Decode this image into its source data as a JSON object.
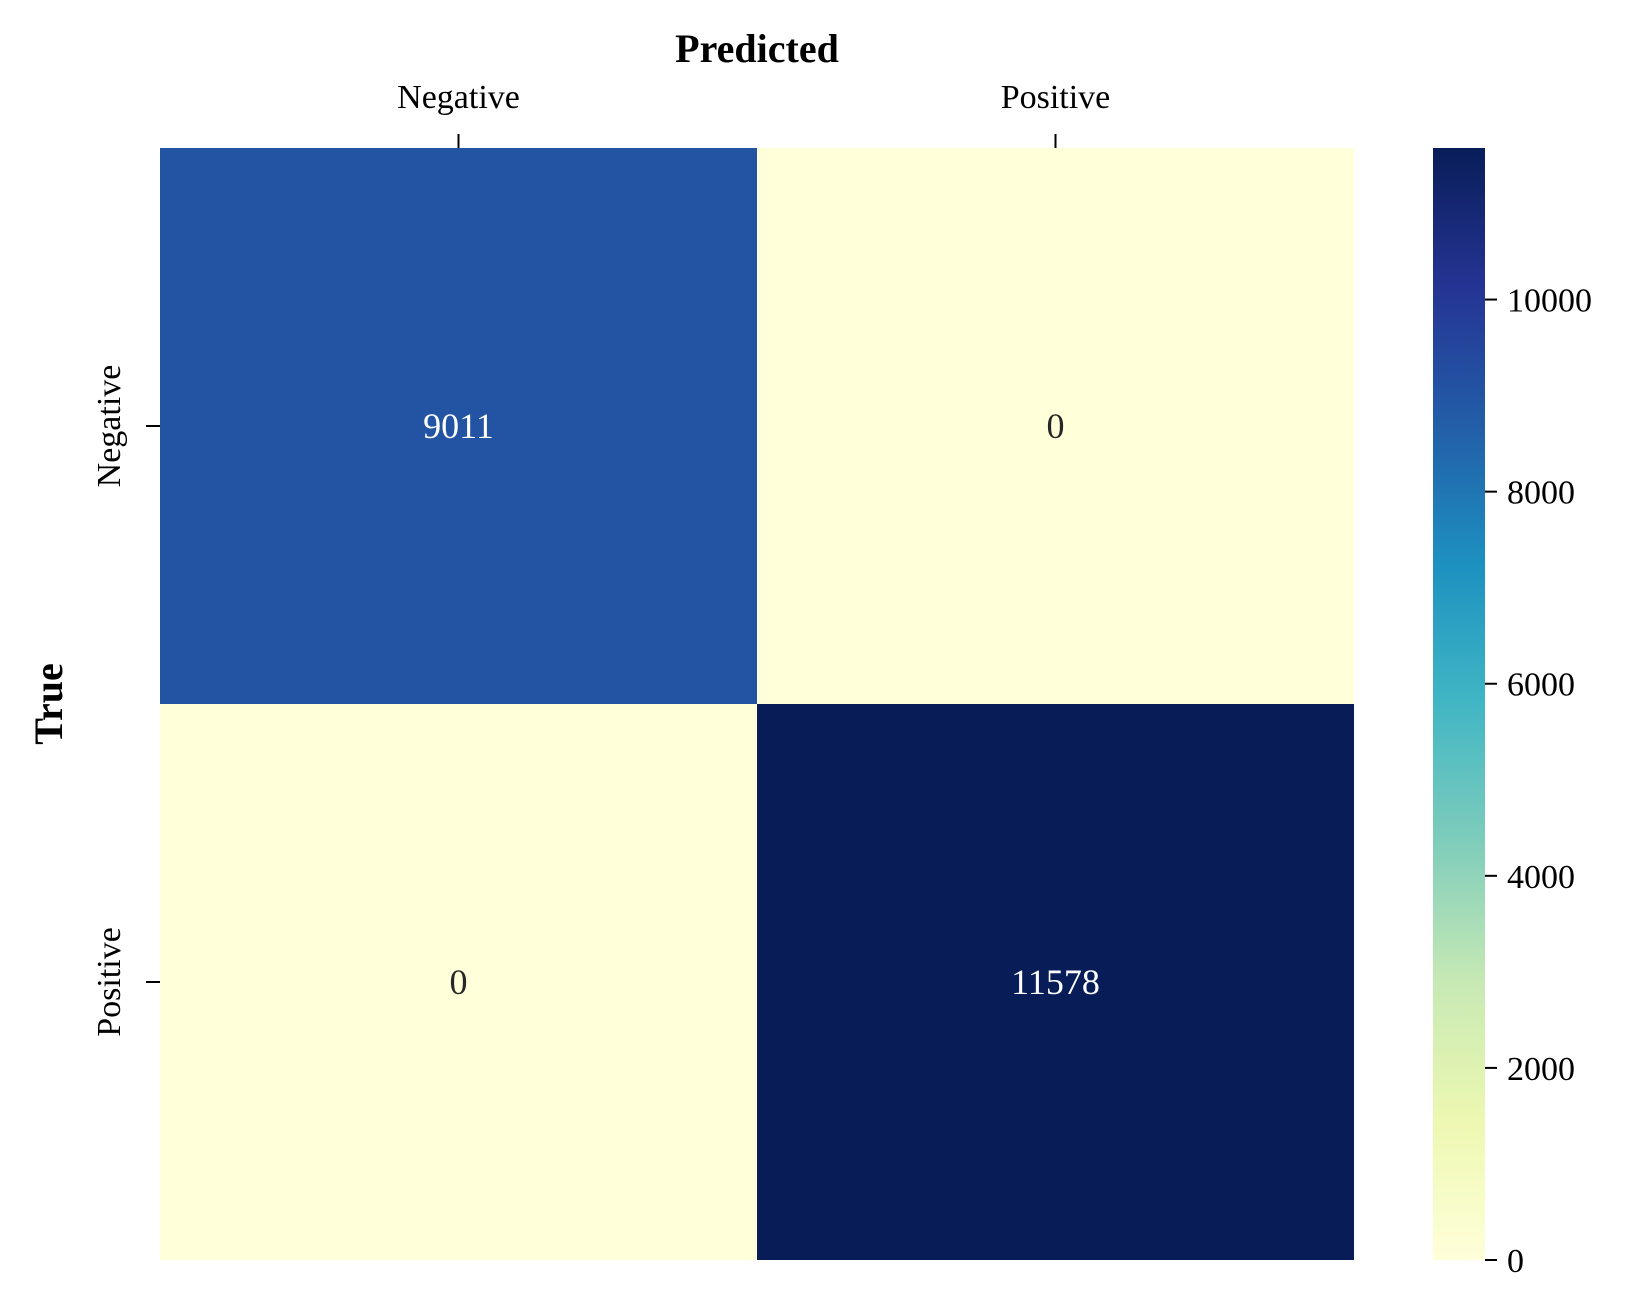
{
  "chart_data": {
    "type": "heatmap",
    "xlabel": "Predicted",
    "ylabel": "True",
    "x_categories": [
      "Negative",
      "Positive"
    ],
    "y_categories": [
      "Negative",
      "Positive"
    ],
    "values": [
      [
        9011,
        0
      ],
      [
        0,
        11578
      ]
    ],
    "cell_labels": [
      [
        "9011",
        "0"
      ],
      [
        "0",
        "11578"
      ]
    ],
    "colorbar": {
      "min": 0,
      "max": 11578,
      "ticks": [
        0,
        2000,
        4000,
        6000,
        8000,
        10000
      ],
      "tick_labels": [
        "0",
        "2000",
        "4000",
        "6000",
        "8000",
        "10000"
      ],
      "colormap": "YlGnBu",
      "colors": [
        "#ffffd9",
        "#edf8b1",
        "#c7e9b4",
        "#7fcdbb",
        "#41b6c4",
        "#1d91c0",
        "#225ea8",
        "#253494",
        "#081d58"
      ]
    },
    "x_axis_position": "top",
    "grid": false
  }
}
